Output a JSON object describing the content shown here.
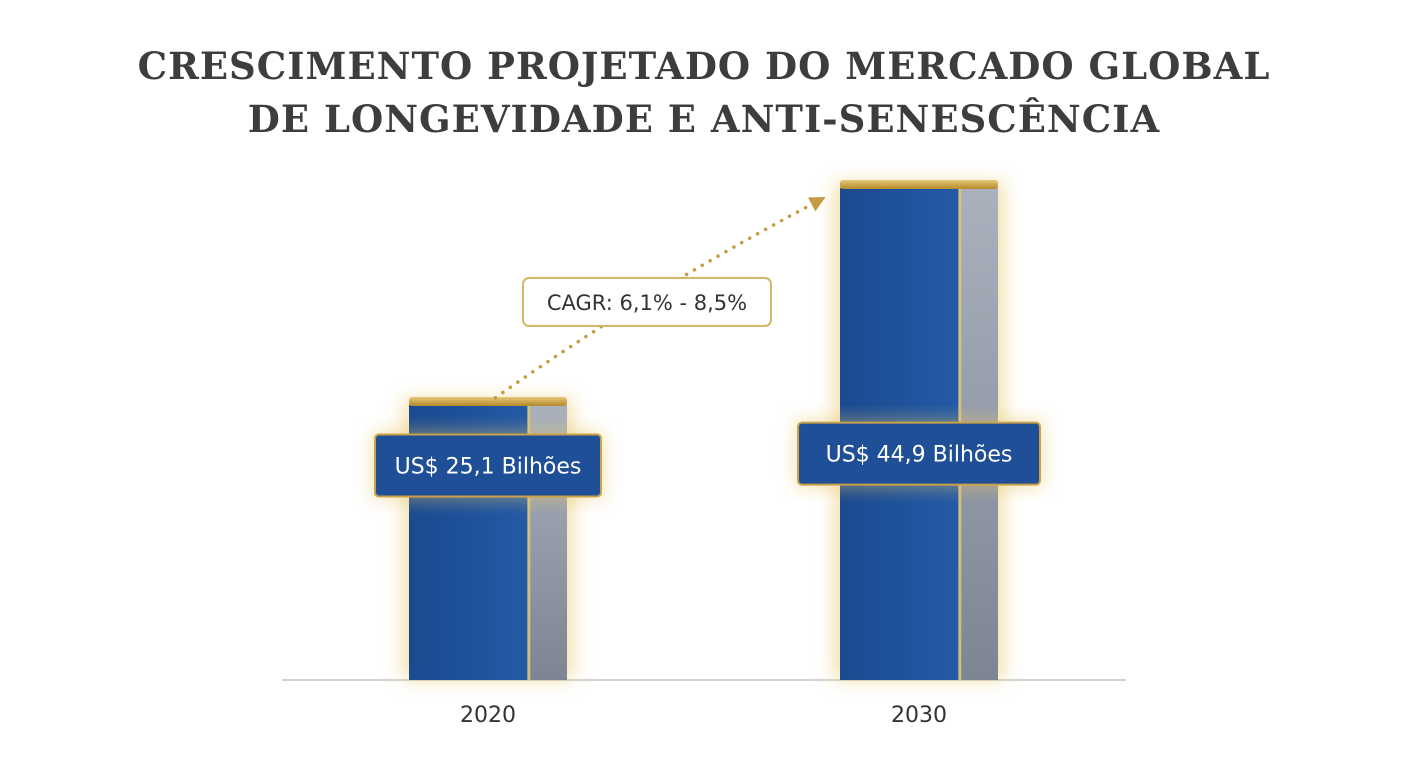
{
  "chart_data": {
    "type": "bar",
    "title": "CRESCIMENTO PROJETADO DO MERCADO GLOBAL DE LONGEVIDADE E ANTI-SENESCÊNCIA",
    "title_lines": [
      "CRESCIMENTO PROJETADO DO MERCADO GLOBAL",
      "DE LONGEVIDADE E ANTI-SENESCÊNCIA"
    ],
    "categories": [
      "2020",
      "2030"
    ],
    "values": [
      25.1,
      44.9
    ],
    "data_labels": [
      "US$ 25,1 Bilhões",
      "US$ 44,9 Bilhões"
    ],
    "annotation": "CAGR: 6,1% - 8,5%",
    "xlabel": "",
    "ylabel": "",
    "ylim": [
      0,
      44.9
    ],
    "grid": false,
    "colors": {
      "bar": "#1f4f96",
      "bar_side": "#9aa3b2",
      "bar_cap": "#c9a24a",
      "accent_gold": "#c9a24a",
      "axis": "#bdbdbd",
      "title": "#3d3d3d"
    }
  }
}
